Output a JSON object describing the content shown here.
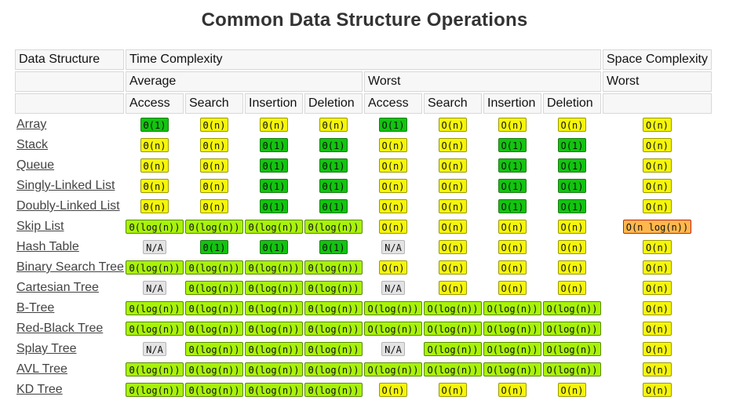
{
  "title": "Common Data Structure Operations",
  "colors": {
    "good": "#12c40f",
    "fair": "#a8f20a",
    "mediocre": "#f5f50a",
    "bad": "#ffb84d",
    "na": "#e3e3e3"
  },
  "header": {
    "data_structure": "Data Structure",
    "time_complexity": "Time Complexity",
    "space_complexity": "Space Complexity",
    "average": "Average",
    "worst": "Worst",
    "worst_space": "Worst",
    "ops": [
      "Access",
      "Search",
      "Insertion",
      "Deletion",
      "Access",
      "Search",
      "Insertion",
      "Deletion"
    ]
  },
  "rows": [
    {
      "name": "Array",
      "cells": [
        {
          "t": "Θ(1)",
          "c": "g"
        },
        {
          "t": "Θ(n)",
          "c": "y"
        },
        {
          "t": "Θ(n)",
          "c": "y"
        },
        {
          "t": "Θ(n)",
          "c": "y"
        },
        {
          "t": "O(1)",
          "c": "g"
        },
        {
          "t": "O(n)",
          "c": "y"
        },
        {
          "t": "O(n)",
          "c": "y"
        },
        {
          "t": "O(n)",
          "c": "y"
        },
        {
          "t": "O(n)",
          "c": "y"
        }
      ]
    },
    {
      "name": "Stack",
      "cells": [
        {
          "t": "Θ(n)",
          "c": "y"
        },
        {
          "t": "Θ(n)",
          "c": "y"
        },
        {
          "t": "Θ(1)",
          "c": "g"
        },
        {
          "t": "Θ(1)",
          "c": "g"
        },
        {
          "t": "O(n)",
          "c": "y"
        },
        {
          "t": "O(n)",
          "c": "y"
        },
        {
          "t": "O(1)",
          "c": "g"
        },
        {
          "t": "O(1)",
          "c": "g"
        },
        {
          "t": "O(n)",
          "c": "y"
        }
      ]
    },
    {
      "name": "Queue",
      "cells": [
        {
          "t": "Θ(n)",
          "c": "y"
        },
        {
          "t": "Θ(n)",
          "c": "y"
        },
        {
          "t": "Θ(1)",
          "c": "g"
        },
        {
          "t": "Θ(1)",
          "c": "g"
        },
        {
          "t": "O(n)",
          "c": "y"
        },
        {
          "t": "O(n)",
          "c": "y"
        },
        {
          "t": "O(1)",
          "c": "g"
        },
        {
          "t": "O(1)",
          "c": "g"
        },
        {
          "t": "O(n)",
          "c": "y"
        }
      ]
    },
    {
      "name": "Singly-Linked List",
      "cells": [
        {
          "t": "Θ(n)",
          "c": "y"
        },
        {
          "t": "Θ(n)",
          "c": "y"
        },
        {
          "t": "Θ(1)",
          "c": "g"
        },
        {
          "t": "Θ(1)",
          "c": "g"
        },
        {
          "t": "O(n)",
          "c": "y"
        },
        {
          "t": "O(n)",
          "c": "y"
        },
        {
          "t": "O(1)",
          "c": "g"
        },
        {
          "t": "O(1)",
          "c": "g"
        },
        {
          "t": "O(n)",
          "c": "y"
        }
      ]
    },
    {
      "name": "Doubly-Linked List",
      "cells": [
        {
          "t": "Θ(n)",
          "c": "y"
        },
        {
          "t": "Θ(n)",
          "c": "y"
        },
        {
          "t": "Θ(1)",
          "c": "g"
        },
        {
          "t": "Θ(1)",
          "c": "g"
        },
        {
          "t": "O(n)",
          "c": "y"
        },
        {
          "t": "O(n)",
          "c": "y"
        },
        {
          "t": "O(1)",
          "c": "g"
        },
        {
          "t": "O(1)",
          "c": "g"
        },
        {
          "t": "O(n)",
          "c": "y"
        }
      ]
    },
    {
      "name": "Skip List",
      "cells": [
        {
          "t": "Θ(log(n))",
          "c": "lg"
        },
        {
          "t": "Θ(log(n))",
          "c": "lg"
        },
        {
          "t": "Θ(log(n))",
          "c": "lg"
        },
        {
          "t": "Θ(log(n))",
          "c": "lg"
        },
        {
          "t": "O(n)",
          "c": "y"
        },
        {
          "t": "O(n)",
          "c": "y"
        },
        {
          "t": "O(n)",
          "c": "y"
        },
        {
          "t": "O(n)",
          "c": "y"
        },
        {
          "t": "O(n log(n))",
          "c": "o"
        }
      ]
    },
    {
      "name": "Hash Table",
      "cells": [
        {
          "t": "N/A",
          "c": "na"
        },
        {
          "t": "Θ(1)",
          "c": "g"
        },
        {
          "t": "Θ(1)",
          "c": "g"
        },
        {
          "t": "Θ(1)",
          "c": "g"
        },
        {
          "t": "N/A",
          "c": "na"
        },
        {
          "t": "O(n)",
          "c": "y"
        },
        {
          "t": "O(n)",
          "c": "y"
        },
        {
          "t": "O(n)",
          "c": "y"
        },
        {
          "t": "O(n)",
          "c": "y"
        }
      ]
    },
    {
      "name": "Binary Search Tree",
      "cells": [
        {
          "t": "Θ(log(n))",
          "c": "lg"
        },
        {
          "t": "Θ(log(n))",
          "c": "lg"
        },
        {
          "t": "Θ(log(n))",
          "c": "lg"
        },
        {
          "t": "Θ(log(n))",
          "c": "lg"
        },
        {
          "t": "O(n)",
          "c": "y"
        },
        {
          "t": "O(n)",
          "c": "y"
        },
        {
          "t": "O(n)",
          "c": "y"
        },
        {
          "t": "O(n)",
          "c": "y"
        },
        {
          "t": "O(n)",
          "c": "y"
        }
      ]
    },
    {
      "name": "Cartesian Tree",
      "cells": [
        {
          "t": "N/A",
          "c": "na"
        },
        {
          "t": "Θ(log(n))",
          "c": "lg"
        },
        {
          "t": "Θ(log(n))",
          "c": "lg"
        },
        {
          "t": "Θ(log(n))",
          "c": "lg"
        },
        {
          "t": "N/A",
          "c": "na"
        },
        {
          "t": "O(n)",
          "c": "y"
        },
        {
          "t": "O(n)",
          "c": "y"
        },
        {
          "t": "O(n)",
          "c": "y"
        },
        {
          "t": "O(n)",
          "c": "y"
        }
      ]
    },
    {
      "name": "B-Tree",
      "cells": [
        {
          "t": "Θ(log(n))",
          "c": "lg"
        },
        {
          "t": "Θ(log(n))",
          "c": "lg"
        },
        {
          "t": "Θ(log(n))",
          "c": "lg"
        },
        {
          "t": "Θ(log(n))",
          "c": "lg"
        },
        {
          "t": "O(log(n))",
          "c": "lg"
        },
        {
          "t": "O(log(n))",
          "c": "lg"
        },
        {
          "t": "O(log(n))",
          "c": "lg"
        },
        {
          "t": "O(log(n))",
          "c": "lg"
        },
        {
          "t": "O(n)",
          "c": "y"
        }
      ]
    },
    {
      "name": "Red-Black Tree",
      "cells": [
        {
          "t": "Θ(log(n))",
          "c": "lg"
        },
        {
          "t": "Θ(log(n))",
          "c": "lg"
        },
        {
          "t": "Θ(log(n))",
          "c": "lg"
        },
        {
          "t": "Θ(log(n))",
          "c": "lg"
        },
        {
          "t": "O(log(n))",
          "c": "lg"
        },
        {
          "t": "O(log(n))",
          "c": "lg"
        },
        {
          "t": "O(log(n))",
          "c": "lg"
        },
        {
          "t": "O(log(n))",
          "c": "lg"
        },
        {
          "t": "O(n)",
          "c": "y"
        }
      ]
    },
    {
      "name": "Splay Tree",
      "cells": [
        {
          "t": "N/A",
          "c": "na"
        },
        {
          "t": "Θ(log(n))",
          "c": "lg"
        },
        {
          "t": "Θ(log(n))",
          "c": "lg"
        },
        {
          "t": "Θ(log(n))",
          "c": "lg"
        },
        {
          "t": "N/A",
          "c": "na"
        },
        {
          "t": "O(log(n))",
          "c": "lg"
        },
        {
          "t": "O(log(n))",
          "c": "lg"
        },
        {
          "t": "O(log(n))",
          "c": "lg"
        },
        {
          "t": "O(n)",
          "c": "y"
        }
      ]
    },
    {
      "name": "AVL Tree",
      "cells": [
        {
          "t": "Θ(log(n))",
          "c": "lg"
        },
        {
          "t": "Θ(log(n))",
          "c": "lg"
        },
        {
          "t": "Θ(log(n))",
          "c": "lg"
        },
        {
          "t": "Θ(log(n))",
          "c": "lg"
        },
        {
          "t": "O(log(n))",
          "c": "lg"
        },
        {
          "t": "O(log(n))",
          "c": "lg"
        },
        {
          "t": "O(log(n))",
          "c": "lg"
        },
        {
          "t": "O(log(n))",
          "c": "lg"
        },
        {
          "t": "O(n)",
          "c": "y"
        }
      ]
    },
    {
      "name": "KD Tree",
      "cells": [
        {
          "t": "Θ(log(n))",
          "c": "lg"
        },
        {
          "t": "Θ(log(n))",
          "c": "lg"
        },
        {
          "t": "Θ(log(n))",
          "c": "lg"
        },
        {
          "t": "Θ(log(n))",
          "c": "lg"
        },
        {
          "t": "O(n)",
          "c": "y"
        },
        {
          "t": "O(n)",
          "c": "y"
        },
        {
          "t": "O(n)",
          "c": "y"
        },
        {
          "t": "O(n)",
          "c": "y"
        },
        {
          "t": "O(n)",
          "c": "y"
        }
      ]
    }
  ]
}
